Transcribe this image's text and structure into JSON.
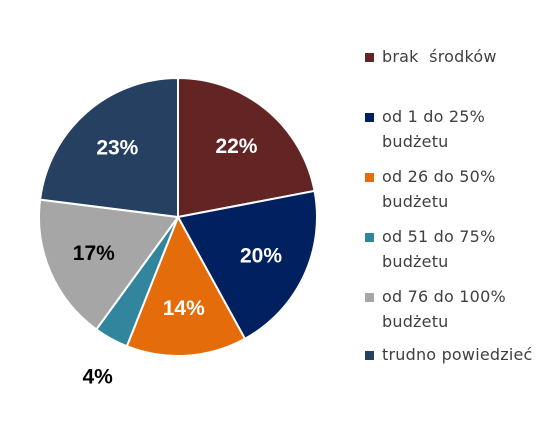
{
  "chart_data": {
    "type": "pie",
    "series": [
      {
        "name": "brak  środków",
        "value": 22,
        "label": "22%",
        "color": "#632523",
        "label_color": "#ffffff"
      },
      {
        "name": "od 1 do 25%\nbudżetu",
        "value": 20,
        "label": "20%",
        "color": "#002060",
        "label_color": "#ffffff"
      },
      {
        "name": "od 26 do 50%\nbudżetu",
        "value": 14,
        "label": "14%",
        "color": "#e46c0a",
        "label_color": "#ffffff"
      },
      {
        "name": "od 51 do 75%\nbudżetu",
        "value": 4,
        "label": "4%",
        "color": "#31859c",
        "label_color": "#000000"
      },
      {
        "name": "od 76 do 100%\nbudżetu",
        "value": 17,
        "label": "17%",
        "color": "#a6a6a6",
        "label_color": "#000000"
      },
      {
        "name": "trudno powiedzieć",
        "value": 23,
        "label": "23%",
        "color": "#254061",
        "label_color": "#ffffff"
      }
    ],
    "start_angle_deg": 0,
    "direction": "clockwise",
    "legend_position": "right",
    "data_labels": true
  }
}
